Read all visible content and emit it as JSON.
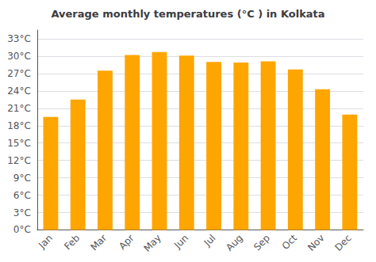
{
  "chart_data": {
    "type": "bar",
    "title": "Average monthly temperatures (°C ) in Kolkata",
    "categories": [
      "Jan",
      "Feb",
      "Mar",
      "Apr",
      "May",
      "Jun",
      "Jul",
      "Aug",
      "Sep",
      "Oct",
      "Nov",
      "Dec"
    ],
    "values": [
      19.5,
      22.5,
      27.5,
      30.2,
      30.7,
      30.1,
      29.0,
      28.9,
      29.1,
      27.7,
      24.3,
      19.9
    ],
    "color": "#FFA500",
    "ylim": [
      0,
      34.5
    ],
    "yticks": [
      {
        "value": 0,
        "label": "0°C"
      },
      {
        "value": 3,
        "label": "3°C"
      },
      {
        "value": 6,
        "label": "6°C"
      },
      {
        "value": 9,
        "label": "9°C"
      },
      {
        "value": 12,
        "label": "12°C"
      },
      {
        "value": 15,
        "label": "15°C"
      },
      {
        "value": 18,
        "label": "18°C"
      },
      {
        "value": 21,
        "label": "21°C"
      },
      {
        "value": 24,
        "label": "24°C"
      },
      {
        "value": 27,
        "label": "27°C"
      },
      {
        "value": 30,
        "label": "30°C"
      },
      {
        "value": 33,
        "label": "33°C"
      }
    ],
    "grid": true
  }
}
